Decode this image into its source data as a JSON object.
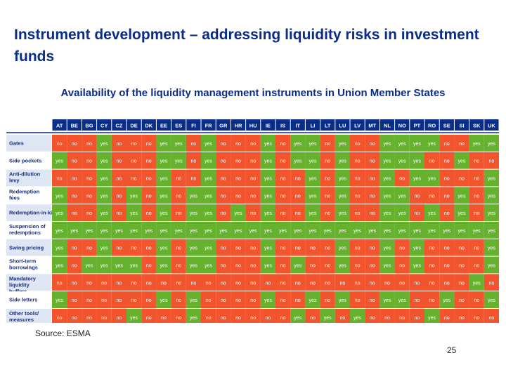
{
  "slide": {
    "title": "Instrument development – addressing liquidity risks in investment funds",
    "source": "Source: ESMA",
    "page_number": "25"
  },
  "colors": {
    "title": "#0a2d8a",
    "yes": "#66b22e",
    "no": "#f2542d",
    "header_band": "#0a2d8a",
    "row_label_alt": "#dfe6f3"
  },
  "chart_data": {
    "type": "heatmap",
    "title": "Availability of the liquidity management instruments in Union Member States",
    "columns": [
      "AT",
      "BE",
      "BG",
      "CY",
      "CZ",
      "DE",
      "DK",
      "EE",
      "ES",
      "FI",
      "FR",
      "GR",
      "HR",
      "HU",
      "IE",
      "IS",
      "IT",
      "LI",
      "LT",
      "LU",
      "LV",
      "MT",
      "NL",
      "NO",
      "PT",
      "RO",
      "SE",
      "SI",
      "SK",
      "UK"
    ],
    "rows": [
      {
        "label": "Gates",
        "values": [
          "no",
          "no",
          "no",
          "yes",
          "no",
          "no",
          "no",
          "yes",
          "yes",
          "no",
          "yes",
          "no",
          "no",
          "no",
          "yes",
          "no",
          "yes",
          "yes",
          "no",
          "yes",
          "no",
          "no",
          "yes",
          "yes",
          "yes",
          "yes",
          "no",
          "no",
          "yes",
          "yes"
        ]
      },
      {
        "label": "Side pockets",
        "values": [
          "yes",
          "no",
          "no",
          "yes",
          "no",
          "no",
          "no",
          "yes",
          "yes",
          "no",
          "yes",
          "no",
          "no",
          "no",
          "yes",
          "no",
          "yes",
          "yes",
          "no",
          "yes",
          "no",
          "no",
          "yes",
          "yes",
          "yes",
          "no",
          "no",
          "yes",
          "no",
          "no"
        ]
      },
      {
        "label": "Anti-dilution levy",
        "values": [
          "no",
          "no",
          "no",
          "yes",
          "no",
          "no",
          "no",
          "yes",
          "no",
          "no",
          "yes",
          "no",
          "no",
          "no",
          "yes",
          "no",
          "no",
          "yes",
          "no",
          "yes",
          "no",
          "no",
          "yes",
          "no",
          "yes",
          "yes",
          "no",
          "no",
          "no",
          "yes"
        ]
      },
      {
        "label": "Redemption fees",
        "values": [
          "yes",
          "no",
          "no",
          "yes",
          "no",
          "yes",
          "no",
          "yes",
          "no",
          "yes",
          "yes",
          "no",
          "no",
          "no",
          "yes",
          "no",
          "no",
          "yes",
          "no",
          "yes",
          "no",
          "no",
          "yes",
          "yes",
          "no",
          "no",
          "no",
          "yes",
          "no",
          "yes"
        ]
      },
      {
        "label": "Redemption-in-kind",
        "values": [
          "yes",
          "no",
          "no",
          "yes",
          "no",
          "yes",
          "no",
          "yes",
          "no",
          "yes",
          "yes",
          "no",
          "yes",
          "no",
          "yes",
          "no",
          "no",
          "yes",
          "no",
          "yes",
          "no",
          "no",
          "yes",
          "yes",
          "no",
          "yes",
          "no",
          "yes",
          "no",
          "yes"
        ]
      },
      {
        "label": "Suspension of redemptions",
        "values": [
          "yes",
          "yes",
          "yes",
          "yes",
          "yes",
          "yes",
          "yes",
          "yes",
          "yes",
          "yes",
          "yes",
          "yes",
          "yes",
          "yes",
          "yes",
          "yes",
          "yes",
          "yes",
          "yes",
          "yes",
          "yes",
          "yes",
          "yes",
          "yes",
          "yes",
          "yes",
          "yes",
          "yes",
          "yes",
          "yes"
        ]
      },
      {
        "label": "Swing pricing",
        "values": [
          "yes",
          "no",
          "no",
          "yes",
          "no",
          "no",
          "no",
          "yes",
          "no",
          "yes",
          "yes",
          "no",
          "no",
          "no",
          "yes",
          "no",
          "no",
          "no",
          "no",
          "yes",
          "no",
          "no",
          "yes",
          "no",
          "yes",
          "no",
          "no",
          "no",
          "no",
          "yes"
        ]
      },
      {
        "label": "Short-term borrowings",
        "values": [
          "yes",
          "no",
          "yes",
          "yes",
          "yes",
          "yes",
          "no",
          "yes",
          "no",
          "yes",
          "yes",
          "no",
          "no",
          "no",
          "yes",
          "no",
          "yes",
          "no",
          "no",
          "yes",
          "no",
          "no",
          "yes",
          "no",
          "yes",
          "no",
          "no",
          "no",
          "no",
          "yes"
        ]
      },
      {
        "label": "Mandatory liquidity buffers",
        "values": [
          "no",
          "no",
          "no",
          "no",
          "no",
          "no",
          "no",
          "no",
          "no",
          "no",
          "no",
          "no",
          "no",
          "no",
          "no",
          "no",
          "no",
          "no",
          "no",
          "no",
          "no",
          "no",
          "no",
          "no",
          "no",
          "no",
          "no",
          "no",
          "yes",
          "no"
        ]
      },
      {
        "label": "Side letters",
        "values": [
          "yes",
          "no",
          "no",
          "no",
          "no",
          "no",
          "no",
          "yes",
          "no",
          "yes",
          "no",
          "no",
          "no",
          "no",
          "yes",
          "no",
          "no",
          "yes",
          "no",
          "yes",
          "no",
          "no",
          "yes",
          "yes",
          "no",
          "no",
          "yes",
          "no",
          "no",
          "yes"
        ]
      },
      {
        "label": "Other tools/ measures",
        "values": [
          "no",
          "no",
          "no",
          "no",
          "no",
          "yes",
          "no",
          "no",
          "no",
          "yes",
          "no",
          "no",
          "no",
          "no",
          "no",
          "no",
          "yes",
          "no",
          "yes",
          "no",
          "yes",
          "no",
          "no",
          "no",
          "no",
          "yes",
          "no",
          "no",
          "no",
          "no"
        ]
      }
    ]
  }
}
